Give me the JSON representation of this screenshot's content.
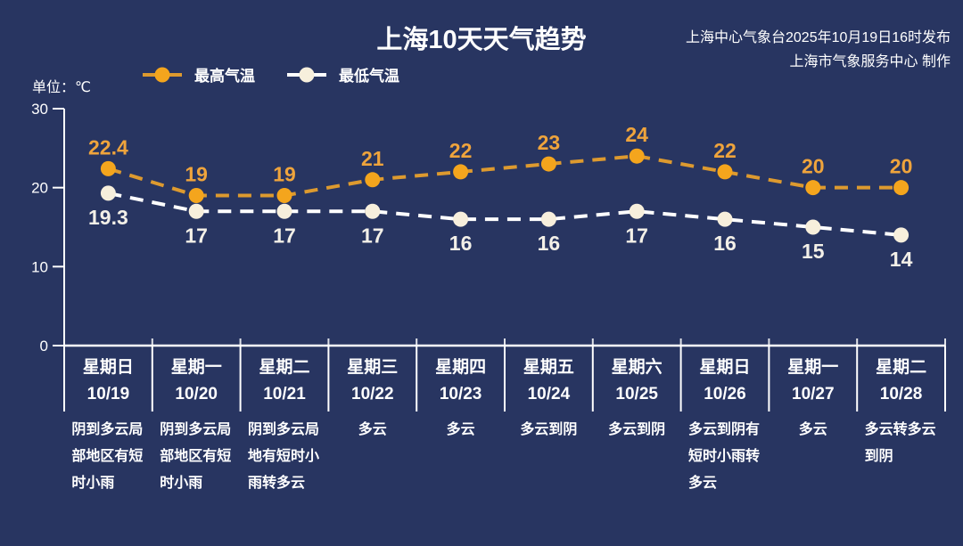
{
  "page": {
    "background": "#283561"
  },
  "header": {
    "title": "上海10天天气趋势",
    "publisher_line1": "上海中心气象台2025年10月19日16时发布",
    "publisher_line2": "上海市气象服务中心 制作",
    "unit_label": "单位：℃"
  },
  "chart_data": {
    "type": "line",
    "title": "上海10天天气趋势",
    "ylabel": "单位：℃",
    "ylim": [
      0,
      30
    ],
    "yticks": [
      0,
      10,
      20,
      30
    ],
    "grid": false,
    "line_style": "dashed",
    "legend_position": "top-left",
    "categories": [
      {
        "weekday": "星期日",
        "date": "10/19",
        "weather": "阴到多云局部地区有短时小雨"
      },
      {
        "weekday": "星期一",
        "date": "10/20",
        "weather": "阴到多云局部地区有短时小雨"
      },
      {
        "weekday": "星期二",
        "date": "10/21",
        "weather": "阴到多云局地有短时小雨转多云"
      },
      {
        "weekday": "星期三",
        "date": "10/22",
        "weather": "多云"
      },
      {
        "weekday": "星期四",
        "date": "10/23",
        "weather": "多云"
      },
      {
        "weekday": "星期五",
        "date": "10/24",
        "weather": "多云到阴"
      },
      {
        "weekday": "星期六",
        "date": "10/25",
        "weather": "多云到阴"
      },
      {
        "weekday": "星期日",
        "date": "10/26",
        "weather": "多云到阴有短时小雨转多云"
      },
      {
        "weekday": "星期一",
        "date": "10/27",
        "weather": "多云"
      },
      {
        "weekday": "星期二",
        "date": "10/28",
        "weather": "多云转多云到阴"
      }
    ],
    "series": [
      {
        "name": "最高气温",
        "values": [
          22.4,
          19,
          19,
          21,
          22,
          23,
          24,
          22,
          20,
          20
        ],
        "marker_color": "#f4a51d",
        "line_color": "#dd9a2f",
        "label_color": "#efa43c",
        "label_position": "above"
      },
      {
        "name": "最低气温",
        "values": [
          19.3,
          17,
          17,
          17,
          16,
          16,
          17,
          16,
          15,
          14
        ],
        "marker_color": "#f7efdc",
        "line_color": "#ffffff",
        "label_color": "#f3f0e8",
        "label_position": "below"
      }
    ]
  }
}
